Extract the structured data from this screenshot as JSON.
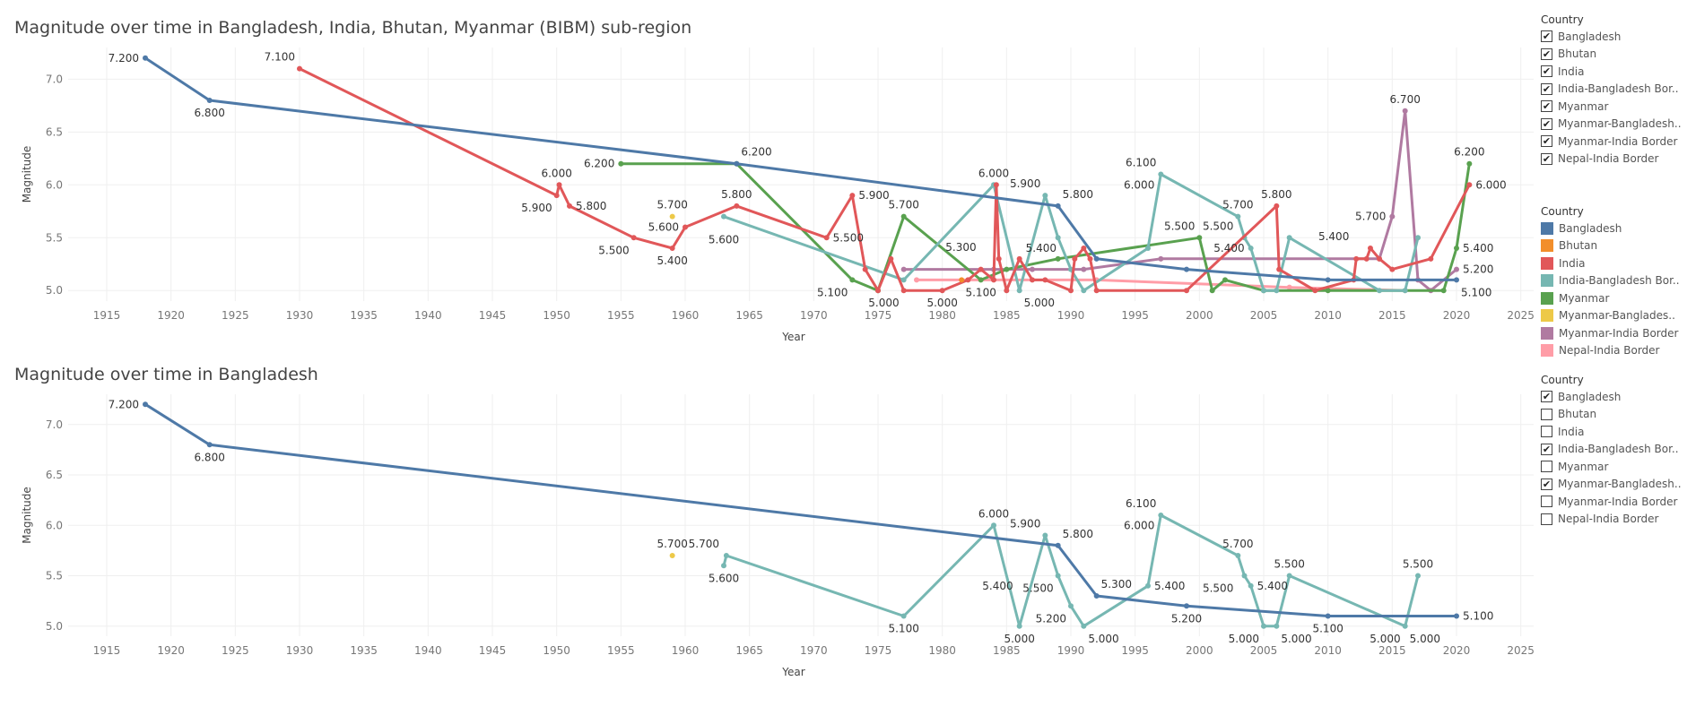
{
  "filter_title": "Country",
  "color_title": "Country",
  "check_mark": "✔",
  "countries": [
    {
      "name": "Bangladesh",
      "label": "Bangladesh",
      "color": "#4e79a7"
    },
    {
      "name": "Bhutan",
      "label": "Bhutan",
      "color": "#f28e2b"
    },
    {
      "name": "India",
      "label": "India",
      "color": "#e15759"
    },
    {
      "name": "India-Bangladesh Border",
      "label": "India-Bangladesh Bor..",
      "color": "#76b7b2"
    },
    {
      "name": "Myanmar",
      "label": "Myanmar",
      "color": "#59a14f"
    },
    {
      "name": "Myanmar-Bangladesh Border",
      "label": "Myanmar-Banglades..",
      "color": "#edc948"
    },
    {
      "name": "Myanmar-India Border",
      "label": "Myanmar-India Border",
      "color": "#b07aa1"
    },
    {
      "name": "Nepal-India Border",
      "label": "Nepal-India Border",
      "color": "#ff9da7"
    }
  ],
  "filter_labels": [
    "Bangladesh",
    "Bhutan",
    "India",
    "India-Bangladesh Bor..",
    "Myanmar",
    "Myanmar-Bangladesh..",
    "Myanmar-India Border",
    "Nepal-India Border"
  ],
  "color_legend_labels": [
    "Bangladesh",
    "Bhutan",
    "India",
    "India-Bangladesh Bor..",
    "Myanmar",
    "Myanmar-Banglades..",
    "Myanmar-India Border",
    "Nepal-India Border"
  ],
  "chart_data": [
    {
      "type": "line",
      "title": "Magnitude over time in Bangladesh, India, Bhutan, Myanmar (BIBM) sub-region",
      "xlabel": "Year",
      "ylabel": "Magnitude",
      "xlim": [
        1912,
        2026
      ],
      "ylim": [
        4.9,
        7.3
      ],
      "xticks": [
        1915,
        1920,
        1925,
        1930,
        1935,
        1940,
        1945,
        1950,
        1955,
        1960,
        1965,
        1970,
        1975,
        1980,
        1985,
        1990,
        1995,
        2000,
        2005,
        2010,
        2015,
        2020,
        2025
      ],
      "yticks": [
        5.0,
        5.5,
        6.0,
        6.5,
        7.0
      ],
      "ytick_labels": [
        "5.0",
        "5.5",
        "6.0",
        "6.5",
        "7.0"
      ],
      "filter_checked": [
        true,
        true,
        true,
        true,
        true,
        true,
        true,
        true
      ],
      "series": [
        {
          "name": "Myanmar-India Border",
          "x": [
            1977,
            1984,
            1987,
            1991,
            1997,
            2014,
            2015,
            2016,
            2017,
            2018,
            2020
          ],
          "y": [
            5.2,
            5.2,
            5.2,
            5.2,
            5.3,
            5.3,
            5.7,
            6.7,
            5.1,
            5.0,
            5.2
          ]
        },
        {
          "name": "Nepal-India Border",
          "x": [
            1978,
            1992,
            2007,
            2016
          ],
          "y": [
            5.1,
            5.1,
            5.03,
            5.0
          ]
        },
        {
          "name": "Myanmar",
          "x": [
            1955,
            1964,
            1973,
            1975,
            1977,
            1983,
            1985,
            1989,
            2000,
            2001,
            2002,
            2005,
            2010,
            2019,
            2020,
            2021
          ],
          "y": [
            6.2,
            6.2,
            5.1,
            5.0,
            5.7,
            5.1,
            5.2,
            5.3,
            5.5,
            5.0,
            5.1,
            5.0,
            5.0,
            5.0,
            5.4,
            6.2
          ]
        },
        {
          "name": "India-Bangladesh Border",
          "x": [
            1963,
            1977,
            1984,
            1986,
            1988,
            1989,
            1990,
            1991,
            1996,
            1997,
            2003,
            2003.5,
            2004,
            2005,
            2006,
            2007,
            2014,
            2016,
            2017
          ],
          "y": [
            5.7,
            5.1,
            6.0,
            5.0,
            5.9,
            5.5,
            5.2,
            5.0,
            5.4,
            6.1,
            5.7,
            5.5,
            5.4,
            5.0,
            5.0,
            5.5,
            5.0,
            5.0,
            5.5
          ]
        },
        {
          "name": "India",
          "x": [
            1930,
            1950,
            1950.2,
            1951,
            1956,
            1959,
            1960,
            1964,
            1971,
            1973,
            1974,
            1975,
            1976,
            1977,
            1980,
            1982,
            1983,
            1984,
            1984.2,
            1984.4,
            1985,
            1986,
            1987,
            1988,
            1990,
            1990.3,
            1991,
            1991.5,
            1992,
            1999,
            2006,
            2006.2,
            2009,
            2012,
            2012.2,
            2013,
            2013.3,
            2014,
            2015,
            2018,
            2021
          ],
          "y": [
            7.1,
            5.9,
            6.0,
            5.8,
            5.5,
            5.4,
            5.6,
            5.8,
            5.5,
            5.9,
            5.2,
            5.0,
            5.3,
            5.0,
            5.0,
            5.1,
            5.2,
            5.1,
            6.0,
            5.3,
            5.0,
            5.3,
            5.1,
            5.1,
            5.0,
            5.3,
            5.4,
            5.3,
            5.0,
            5.0,
            5.8,
            5.2,
            5.0,
            5.1,
            5.3,
            5.3,
            5.4,
            5.3,
            5.2,
            5.3,
            6.0
          ]
        },
        {
          "name": "Bangladesh",
          "x": [
            1918,
            1923,
            1964,
            1989,
            1992,
            1999,
            2010,
            2020
          ],
          "y": [
            7.2,
            6.8,
            6.2,
            5.8,
            5.3,
            5.2,
            5.1,
            5.1
          ]
        },
        {
          "name": "Bhutan",
          "x": [
            1981.5
          ],
          "y": [
            5.1
          ]
        },
        {
          "name": "Myanmar-Bangladesh Border",
          "x": [
            1959
          ],
          "y": [
            5.7
          ]
        }
      ],
      "data_labels": [
        {
          "text": "7.200",
          "x": 1918,
          "y": 7.2,
          "pos": "left"
        },
        {
          "text": "6.800",
          "x": 1923,
          "y": 6.8,
          "pos": "below"
        },
        {
          "text": "7.100",
          "x": 1930,
          "y": 7.1,
          "pos": "above-left"
        },
        {
          "text": "6.000",
          "x": 1950,
          "y": 6.0,
          "pos": "above"
        },
        {
          "text": "5.900",
          "x": 1950,
          "y": 5.9,
          "pos": "below-left"
        },
        {
          "text": "5.800",
          "x": 1951,
          "y": 5.8,
          "pos": "right"
        },
        {
          "text": "6.200",
          "x": 1955,
          "y": 6.2,
          "pos": "left"
        },
        {
          "text": "5.500",
          "x": 1956,
          "y": 5.5,
          "pos": "below-left"
        },
        {
          "text": "5.700",
          "x": 1959,
          "y": 5.7,
          "pos": "above"
        },
        {
          "text": "5.600",
          "x": 1960,
          "y": 5.6,
          "pos": "left"
        },
        {
          "text": "5.400",
          "x": 1959,
          "y": 5.4,
          "pos": "below"
        },
        {
          "text": "5.600",
          "x": 1963,
          "y": 5.6,
          "pos": "below"
        },
        {
          "text": "5.800",
          "x": 1964,
          "y": 5.8,
          "pos": "above"
        },
        {
          "text": "6.200",
          "x": 1964,
          "y": 6.2,
          "pos": "above-right"
        },
        {
          "text": "5.500",
          "x": 1971,
          "y": 5.5,
          "pos": "right"
        },
        {
          "text": "5.900",
          "x": 1973,
          "y": 5.9,
          "pos": "right"
        },
        {
          "text": "5.100",
          "x": 1973,
          "y": 5.1,
          "pos": "below-left"
        },
        {
          "text": "5.700",
          "x": 1977,
          "y": 5.7,
          "pos": "above"
        },
        {
          "text": "5.000",
          "x": 1977,
          "y": 5.0,
          "pos": "below-left"
        },
        {
          "text": "5.000",
          "x": 1980,
          "y": 5.0,
          "pos": "below"
        },
        {
          "text": "5.100",
          "x": 1983,
          "y": 5.1,
          "pos": "below"
        },
        {
          "text": "5.300",
          "x": 1983,
          "y": 5.3,
          "pos": "above-left"
        },
        {
          "text": "6.000",
          "x": 1984,
          "y": 6.0,
          "pos": "above"
        },
        {
          "text": "5.400",
          "x": 1986,
          "y": 5.4,
          "pos": "right"
        },
        {
          "text": "5.000",
          "x": 1986,
          "y": 5.0,
          "pos": "below-right"
        },
        {
          "text": "5.900",
          "x": 1988,
          "y": 5.9,
          "pos": "above-left"
        },
        {
          "text": "5.800",
          "x": 1989,
          "y": 5.8,
          "pos": "above-right"
        },
        {
          "text": "6.100",
          "x": 1997,
          "y": 6.1,
          "pos": "above-left"
        },
        {
          "text": "6.000",
          "x": 1997,
          "y": 6.0,
          "pos": "left"
        },
        {
          "text": "5.500",
          "x": 2000,
          "y": 5.5,
          "pos": "above-left"
        },
        {
          "text": "5.700",
          "x": 2003,
          "y": 5.7,
          "pos": "above"
        },
        {
          "text": "5.500",
          "x": 2003,
          "y": 5.5,
          "pos": "above-left"
        },
        {
          "text": "5.400",
          "x": 2004,
          "y": 5.4,
          "pos": "left"
        },
        {
          "text": "5.800",
          "x": 2006,
          "y": 5.8,
          "pos": "above"
        },
        {
          "text": "5.400",
          "x": 2012,
          "y": 5.4,
          "pos": "above-left"
        },
        {
          "text": "5.700",
          "x": 2015,
          "y": 5.7,
          "pos": "left"
        },
        {
          "text": "6.700",
          "x": 2016,
          "y": 6.7,
          "pos": "above"
        },
        {
          "text": "6.200",
          "x": 2021,
          "y": 6.2,
          "pos": "above"
        },
        {
          "text": "6.000",
          "x": 2021,
          "y": 6.0,
          "pos": "right"
        },
        {
          "text": "5.400",
          "x": 2020,
          "y": 5.4,
          "pos": "right"
        },
        {
          "text": "5.200",
          "x": 2020,
          "y": 5.2,
          "pos": "right"
        },
        {
          "text": "5.100",
          "x": 2020,
          "y": 5.1,
          "pos": "below-right"
        }
      ]
    },
    {
      "type": "line",
      "title": "Magnitude over time in Bangladesh",
      "xlabel": "Year",
      "ylabel": "Magnitude",
      "xlim": [
        1912,
        2026
      ],
      "ylim": [
        4.9,
        7.3
      ],
      "xticks": [
        1915,
        1920,
        1925,
        1930,
        1935,
        1940,
        1945,
        1950,
        1955,
        1960,
        1965,
        1970,
        1975,
        1980,
        1985,
        1990,
        1995,
        2000,
        2005,
        2010,
        2015,
        2020,
        2025
      ],
      "yticks": [
        5.0,
        5.5,
        6.0,
        6.5,
        7.0
      ],
      "ytick_labels": [
        "5.0",
        "5.5",
        "6.0",
        "6.5",
        "7.0"
      ],
      "filter_checked": [
        true,
        false,
        false,
        true,
        false,
        true,
        false,
        false
      ],
      "series": [
        {
          "name": "India-Bangladesh Border",
          "x": [
            1963,
            1963.2,
            1977,
            1984,
            1986,
            1988,
            1989,
            1990,
            1991,
            1996,
            1997,
            2003,
            2003.5,
            2004,
            2005,
            2006,
            2007,
            2016,
            2017
          ],
          "y": [
            5.6,
            5.7,
            5.1,
            6.0,
            5.0,
            5.9,
            5.5,
            5.2,
            5.0,
            5.4,
            6.1,
            5.7,
            5.5,
            5.4,
            5.0,
            5.0,
            5.5,
            5.0,
            5.5
          ]
        },
        {
          "name": "Bangladesh",
          "x": [
            1918,
            1923,
            1989,
            1992,
            1999,
            2010,
            2020
          ],
          "y": [
            7.2,
            6.8,
            5.8,
            5.3,
            5.2,
            5.1,
            5.1
          ]
        },
        {
          "name": "Myanmar-Bangladesh Border",
          "x": [
            1959
          ],
          "y": [
            5.7
          ]
        }
      ],
      "data_labels": [
        {
          "text": "7.200",
          "x": 1918,
          "y": 7.2,
          "pos": "left"
        },
        {
          "text": "6.800",
          "x": 1923,
          "y": 6.8,
          "pos": "below"
        },
        {
          "text": "5.700",
          "x": 1959,
          "y": 5.7,
          "pos": "above"
        },
        {
          "text": "5.700",
          "x": 1963,
          "y": 5.7,
          "pos": "above-left"
        },
        {
          "text": "5.600",
          "x": 1963,
          "y": 5.6,
          "pos": "below"
        },
        {
          "text": "5.100",
          "x": 1977,
          "y": 5.1,
          "pos": "below"
        },
        {
          "text": "6.000",
          "x": 1984,
          "y": 6.0,
          "pos": "above"
        },
        {
          "text": "5.400",
          "x": 1986,
          "y": 5.4,
          "pos": "left"
        },
        {
          "text": "5.000",
          "x": 1986,
          "y": 5.0,
          "pos": "below"
        },
        {
          "text": "5.900",
          "x": 1988,
          "y": 5.9,
          "pos": "above-left"
        },
        {
          "text": "5.800",
          "x": 1989,
          "y": 5.8,
          "pos": "above-right"
        },
        {
          "text": "5.500",
          "x": 1989,
          "y": 5.5,
          "pos": "below-left"
        },
        {
          "text": "5.200",
          "x": 1990,
          "y": 5.2,
          "pos": "below-left"
        },
        {
          "text": "5.000",
          "x": 1991,
          "y": 5.0,
          "pos": "below-right"
        },
        {
          "text": "5.300",
          "x": 1992,
          "y": 5.3,
          "pos": "above-right"
        },
        {
          "text": "5.400",
          "x": 1996,
          "y": 5.4,
          "pos": "right"
        },
        {
          "text": "6.100",
          "x": 1997,
          "y": 6.1,
          "pos": "above-left"
        },
        {
          "text": "6.000",
          "x": 1997,
          "y": 6.0,
          "pos": "left"
        },
        {
          "text": "5.200",
          "x": 1999,
          "y": 5.2,
          "pos": "below"
        },
        {
          "text": "5.700",
          "x": 2003,
          "y": 5.7,
          "pos": "above"
        },
        {
          "text": "5.500",
          "x": 2003,
          "y": 5.5,
          "pos": "below-left"
        },
        {
          "text": "5.400",
          "x": 2004,
          "y": 5.4,
          "pos": "right"
        },
        {
          "text": "5.000",
          "x": 2005,
          "y": 5.0,
          "pos": "below-left"
        },
        {
          "text": "5.000",
          "x": 2006,
          "y": 5.0,
          "pos": "below-right"
        },
        {
          "text": "5.500",
          "x": 2007,
          "y": 5.5,
          "pos": "above"
        },
        {
          "text": "5.100",
          "x": 2010,
          "y": 5.1,
          "pos": "below"
        },
        {
          "text": "5.000",
          "x": 2016,
          "y": 5.0,
          "pos": "below-left"
        },
        {
          "text": "5.000",
          "x": 2016,
          "y": 5.0,
          "pos": "below-right"
        },
        {
          "text": "5.500",
          "x": 2017,
          "y": 5.5,
          "pos": "above"
        },
        {
          "text": "5.100",
          "x": 2020,
          "y": 5.1,
          "pos": "right"
        }
      ]
    }
  ]
}
